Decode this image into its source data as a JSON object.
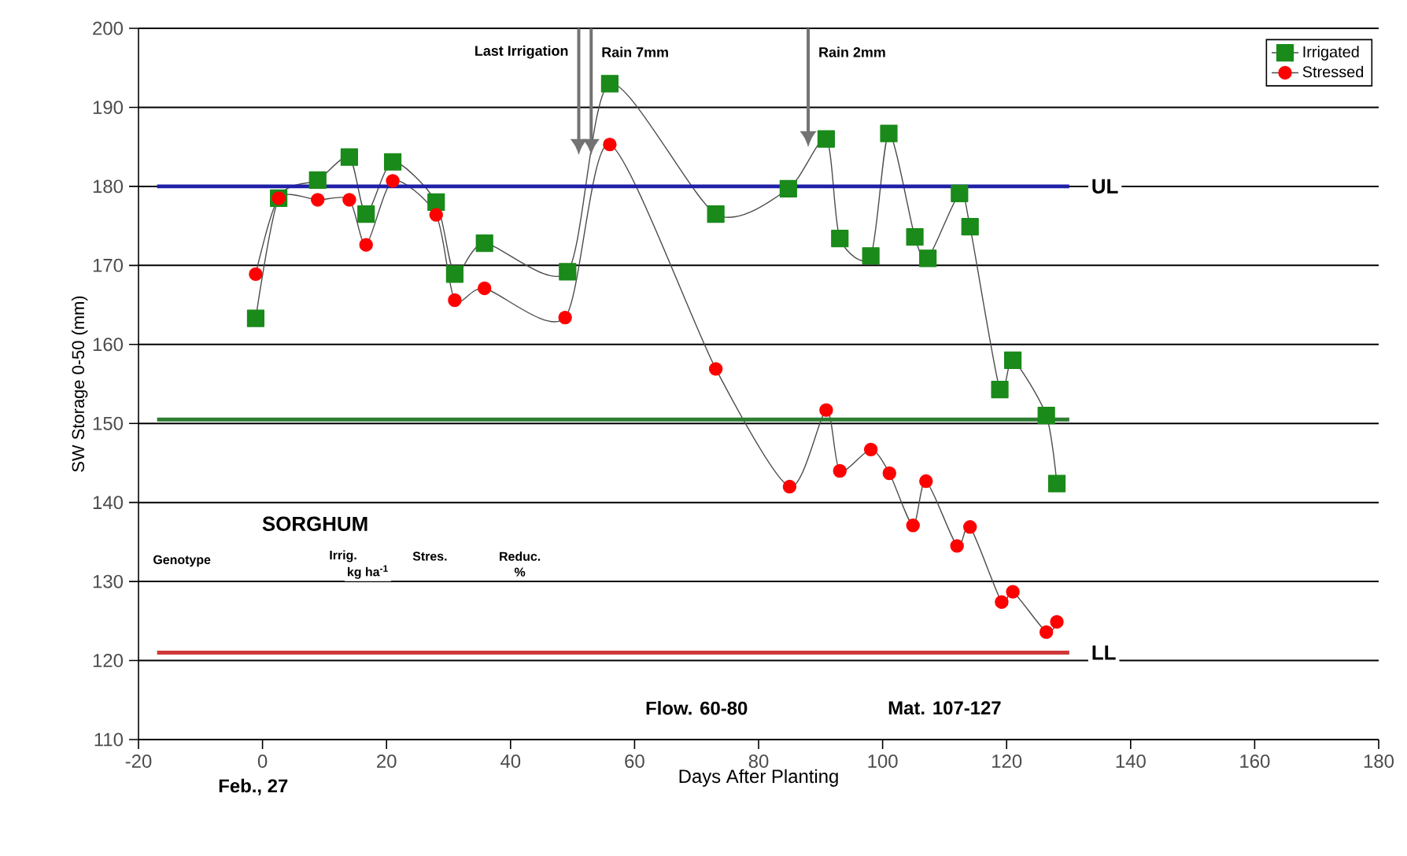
{
  "chart_data": {
    "type": "line",
    "xlabel": "Days After Planting",
    "ylabel": "SW Storage 0-50 (mm)",
    "xlim": [
      -20,
      180
    ],
    "xticks": [
      -20,
      0,
      20,
      40,
      60,
      80,
      100,
      120,
      140,
      160,
      180
    ],
    "ylim": [
      110,
      200
    ],
    "yticks": [
      110,
      120,
      130,
      140,
      150,
      160,
      170,
      180,
      190,
      200
    ],
    "grid": "y",
    "legend": "top right",
    "series": [
      {
        "name": "Irrigated",
        "color": "#1a8a1a",
        "marker": "square",
        "x": [
          -1.1,
          2.6,
          8.9,
          14.0,
          16.7,
          21.0,
          28.0,
          31.0,
          35.8,
          49.2,
          56.0,
          73.1,
          84.8,
          90.9,
          93.1,
          98.1,
          101.0,
          105.2,
          107.3,
          112.4,
          114.1,
          118.9,
          121.0,
          126.4,
          128.1
        ],
        "values": [
          163.3,
          178.5,
          180.8,
          183.7,
          176.5,
          183.1,
          178.0,
          168.9,
          172.8,
          169.2,
          193.0,
          176.5,
          179.7,
          186.0,
          173.4,
          171.2,
          186.7,
          173.6,
          170.9,
          179.1,
          174.9,
          154.3,
          158.0,
          151.0,
          142.4
        ]
      },
      {
        "name": "Stressed",
        "color": "#ff0000",
        "marker": "circle",
        "x": [
          -1.1,
          2.6,
          8.9,
          14.0,
          16.7,
          21.0,
          28.0,
          31.0,
          35.8,
          48.8,
          56.0,
          73.1,
          85.0,
          90.9,
          93.1,
          98.1,
          101.1,
          104.9,
          107.0,
          112.0,
          114.1,
          119.2,
          121.0,
          126.4,
          128.1
        ],
        "values": [
          168.9,
          178.5,
          178.3,
          178.3,
          172.6,
          180.7,
          176.4,
          165.6,
          167.1,
          163.4,
          185.3,
          156.9,
          142.0,
          151.7,
          144.0,
          146.7,
          143.7,
          137.1,
          142.7,
          134.5,
          136.9,
          127.4,
          128.7,
          123.6,
          124.9
        ]
      }
    ],
    "ref_lines": [
      {
        "axis": "y",
        "value": 180,
        "label": "UL",
        "color": "#1f1fa8"
      },
      {
        "axis": "y",
        "value": 150.5,
        "color": "#2e7d32"
      },
      {
        "axis": "y",
        "value": 121,
        "label": "LL",
        "color": "#d03838"
      }
    ],
    "annotations": [
      "Last Irrigation",
      "Rain 7mm",
      "Rain 2mm",
      "Flow. 60-80",
      "Mat. 107-127",
      "Feb., 27",
      "SORGHUM",
      "Genotype",
      "Irrig.",
      "Stres.",
      "Reduc.",
      "kg ha$^{-1}$",
      "%"
    ]
  }
}
